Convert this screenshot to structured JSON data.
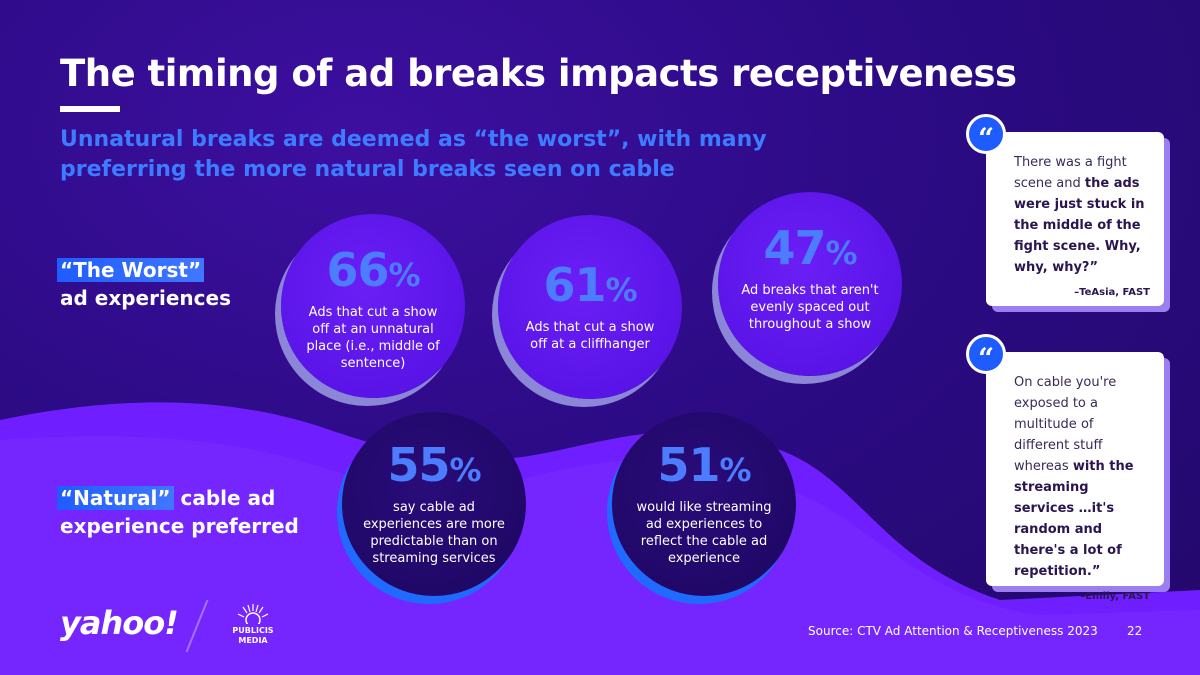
{
  "title": "The timing of ad breaks impacts receptiveness",
  "subtitle": "Unnatural breaks are deemed as “the worst”, with many preferring the more natural breaks seen on cable",
  "rows": {
    "worst": {
      "highlight": "“The Worst”",
      "rest": "ad experiences"
    },
    "natural": {
      "highlight": "“Natural”",
      "rest_line1": " cable ad",
      "rest_line2": "experience preferred"
    }
  },
  "stats": [
    {
      "value": "66",
      "symbol": "%",
      "desc": "Ads that cut a show off at an unnatural place (i.e., middle of sentence)"
    },
    {
      "value": "61",
      "symbol": "%",
      "desc": "Ads that cut a show off at a cliffhanger"
    },
    {
      "value": "47",
      "symbol": "%",
      "desc": "Ad breaks that aren't evenly spaced out throughout a show"
    },
    {
      "value": "55",
      "symbol": "%",
      "desc": "say cable ad experiences are more predictable than on streaming services"
    },
    {
      "value": "51",
      "symbol": "%",
      "desc": "would like streaming ad experiences to reflect the cable ad experience"
    }
  ],
  "quotes": [
    {
      "mark": "“",
      "plain": "There was a fight scene and ",
      "bold": "the ads were just stuck in the middle of the fight scene. Why, why, why?”",
      "by": "–TeAsia, FAST"
    },
    {
      "mark": "“",
      "plain": "On cable you're exposed to a multitude of different stuff whereas ",
      "bold": "with the streaming services …it's random and there's a lot of repetition.”",
      "by": "–Emily, FAST"
    }
  ],
  "footer": {
    "yahoo_logo": "yahoo!",
    "publicis_logo_line1": "PUBLICIS",
    "publicis_logo_line2": "MEDIA",
    "source": "Source: CTV Ad Attention & Receptiveness 2023",
    "page": "22"
  },
  "colors": {
    "background": "#2c0b85",
    "accent_blue": "#3d7bff",
    "bubble_purple": "#5a14e8",
    "wave_purple": "#6f1fff"
  }
}
